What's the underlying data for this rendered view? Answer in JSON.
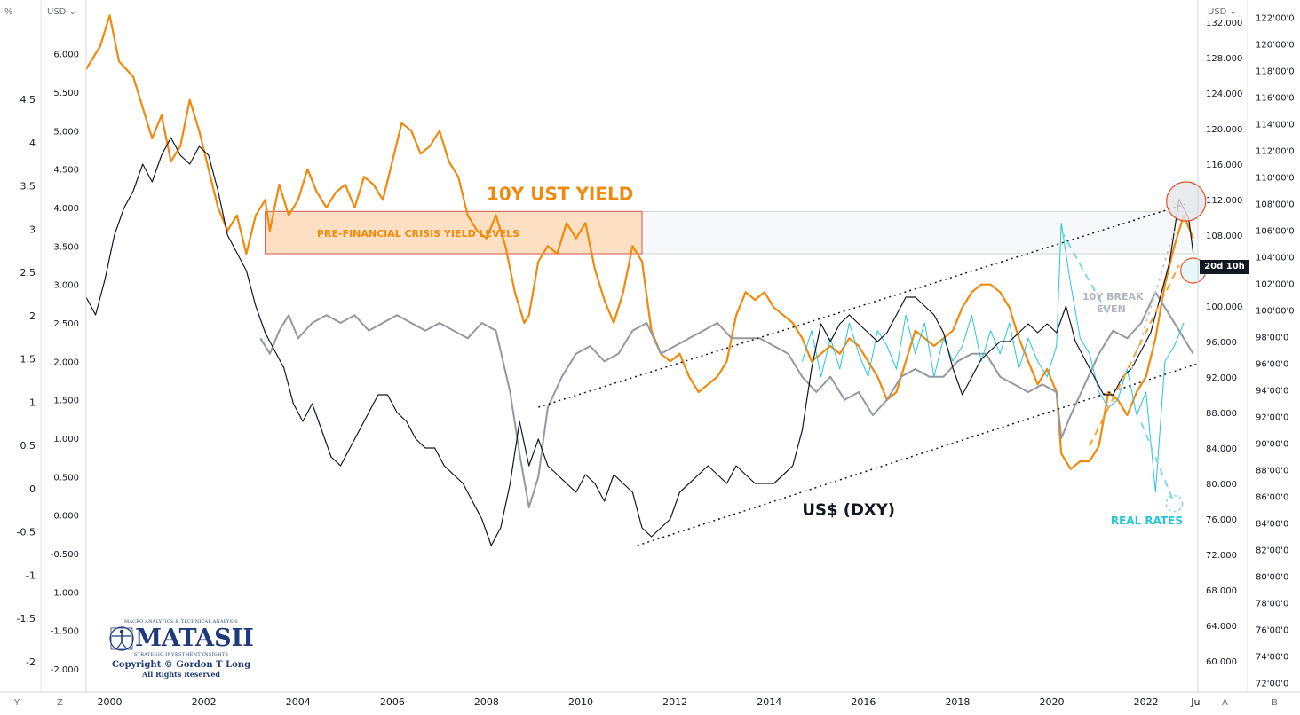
{
  "chart_data": {
    "type": "line",
    "x_range": [
      1999.5,
      2023.1
    ],
    "x_ticks": [
      "2000",
      "2002",
      "2004",
      "2006",
      "2008",
      "2010",
      "2012",
      "2014",
      "2016",
      "2018",
      "2020",
      "2022",
      "Ju"
    ],
    "x_tick_values": [
      2000,
      2002,
      2004,
      2006,
      2008,
      2010,
      2012,
      2014,
      2016,
      2018,
      2020,
      2022,
      2023.05
    ],
    "axes": {
      "left_outer": {
        "label": "%",
        "ticks": [
          "4.5",
          "4",
          "3.5",
          "3",
          "2.5",
          "2",
          "1.5",
          "1",
          "0.5",
          "0",
          "-0.5",
          "-1",
          "-1.5",
          "-2"
        ],
        "tick_values": [
          4.5,
          4,
          3.5,
          3,
          2.5,
          2,
          1.5,
          1,
          0.5,
          0,
          -0.5,
          -1,
          -1.5,
          -2
        ],
        "range": [
          -2.35,
          5.65
        ]
      },
      "left_inner": {
        "label": "USD",
        "ticks": [
          "6.000",
          "5.500",
          "5.000",
          "4.500",
          "4.000",
          "3.500",
          "3.000",
          "2.500",
          "2.000",
          "1.500",
          "1.000",
          "0.500",
          "0.000",
          "-0.500",
          "-1.000",
          "-1.500",
          "-2.000"
        ],
        "tick_values": [
          6,
          5.5,
          5,
          4.5,
          4,
          3.5,
          3,
          2.5,
          2,
          1.5,
          1,
          0.5,
          0,
          -0.5,
          -1,
          -1.5,
          -2
        ],
        "range": [
          -2.3,
          6.7
        ]
      },
      "right_inner": {
        "label": "USD",
        "ticks": [
          "132.000",
          "128.000",
          "124.000",
          "120.000",
          "116.000",
          "112.000",
          "108.000",
          "104.000",
          "100.000",
          "96.000",
          "92.000",
          "88.000",
          "84.000",
          "80.000",
          "76.000",
          "72.000",
          "68.000",
          "64.000",
          "60.000"
        ],
        "tick_values": [
          132,
          128,
          124,
          120,
          116,
          112,
          108,
          104,
          100,
          96,
          92,
          88,
          84,
          80,
          76,
          72,
          68,
          64,
          60
        ],
        "range": [
          56.5,
          134.5
        ]
      },
      "right_outer": {
        "ticks": [
          "122'00'0",
          "120'00'0",
          "118'00'0",
          "116'00'0",
          "114'00'0",
          "112'00'0",
          "110'00'0",
          "108'00'0",
          "106'00'0",
          "104'00'0",
          "102'00'0",
          "100'00'0",
          "98'00'0",
          "96'00'0",
          "94'00'0",
          "92'00'0",
          "90'00'0",
          "88'00'0",
          "86'00'0",
          "84'00'0",
          "82'00'0",
          "80'00'0",
          "78'00'0",
          "76'00'0",
          "74'00'0",
          "72'00'0"
        ],
        "tick_values": [
          122,
          120,
          118,
          116,
          114,
          112,
          110,
          108,
          106,
          104,
          102,
          100,
          98,
          96,
          94,
          92,
          90,
          88,
          86,
          84,
          82,
          80,
          78,
          76,
          74,
          72
        ],
        "range": [
          71.3,
          123.3
        ]
      }
    },
    "series": [
      {
        "color": "#f08a0c",
        "scale": "left_inner",
        "x": [
          1999.5,
          1999.8,
          2000.0,
          2000.2,
          2000.5,
          2000.7,
          2000.9,
          2001.1,
          2001.3,
          2001.5,
          2001.7,
          2001.9,
          2002.1,
          2002.3,
          2002.5,
          2002.7,
          2002.9,
          2003.1,
          2003.3,
          2003.4,
          2003.6,
          2003.8,
          2004.0,
          2004.2,
          2004.4,
          2004.6,
          2004.8,
          2005.0,
          2005.2,
          2005.4,
          2005.6,
          2005.8,
          2006.0,
          2006.2,
          2006.4,
          2006.6,
          2006.8,
          2007.0,
          2007.2,
          2007.4,
          2007.6,
          2007.8,
          2008.0,
          2008.2,
          2008.4,
          2008.6,
          2008.8,
          2008.9,
          2009.1,
          2009.3,
          2009.5,
          2009.7,
          2009.9,
          2010.1,
          2010.3,
          2010.5,
          2010.7,
          2010.9,
          2011.1,
          2011.3,
          2011.5,
          2011.7,
          2011.9,
          2012.1,
          2012.3,
          2012.5,
          2012.7,
          2012.9,
          2013.1,
          2013.3,
          2013.5,
          2013.7,
          2013.9,
          2014.1,
          2014.3,
          2014.5,
          2014.7,
          2014.9,
          2015.1,
          2015.3,
          2015.5,
          2015.7,
          2015.9,
          2016.1,
          2016.3,
          2016.5,
          2016.7,
          2016.9,
          2017.1,
          2017.3,
          2017.5,
          2017.7,
          2017.9,
          2018.1,
          2018.3,
          2018.5,
          2018.7,
          2018.9,
          2019.1,
          2019.3,
          2019.5,
          2019.7,
          2019.9,
          2020.1,
          2020.2,
          2020.4,
          2020.6,
          2020.8,
          2021.0,
          2021.2,
          2021.4,
          2021.6,
          2021.8,
          2022.0,
          2022.2,
          2022.4,
          2022.6,
          2022.8,
          2023.0
        ],
        "y": [
          5.8,
          6.1,
          6.5,
          5.9,
          5.7,
          5.3,
          4.9,
          5.2,
          4.6,
          4.8,
          5.4,
          5.0,
          4.5,
          4.0,
          3.7,
          3.9,
          3.4,
          3.9,
          4.1,
          3.7,
          4.3,
          3.9,
          4.1,
          4.5,
          4.2,
          4.0,
          4.2,
          4.3,
          4.0,
          4.4,
          4.3,
          4.1,
          4.6,
          5.1,
          5.0,
          4.7,
          4.8,
          5.0,
          4.6,
          4.4,
          3.9,
          3.7,
          3.6,
          3.9,
          3.5,
          2.9,
          2.5,
          2.6,
          3.3,
          3.5,
          3.4,
          3.8,
          3.6,
          3.8,
          3.2,
          2.8,
          2.5,
          2.9,
          3.5,
          3.3,
          2.4,
          2.1,
          2.0,
          2.1,
          1.8,
          1.6,
          1.7,
          1.8,
          2.0,
          2.6,
          2.9,
          2.8,
          2.9,
          2.7,
          2.6,
          2.5,
          2.3,
          2.0,
          2.1,
          2.2,
          2.1,
          2.3,
          2.2,
          2.0,
          1.8,
          1.5,
          1.6,
          2.0,
          2.4,
          2.3,
          2.2,
          2.3,
          2.4,
          2.7,
          2.9,
          3.0,
          3.0,
          2.9,
          2.7,
          2.3,
          2.0,
          1.7,
          1.9,
          1.6,
          0.8,
          0.6,
          0.7,
          0.7,
          0.9,
          1.6,
          1.5,
          1.3,
          1.6,
          1.8,
          2.3,
          3.0,
          3.5,
          3.9,
          3.6
        ]
      },
      {
        "color": "#9598a1",
        "scale": "left_inner",
        "x": [
          2003.2,
          2003.4,
          2003.6,
          2003.8,
          2004.0,
          2004.3,
          2004.6,
          2004.9,
          2005.2,
          2005.5,
          2005.8,
          2006.1,
          2006.4,
          2006.7,
          2007.0,
          2007.3,
          2007.6,
          2007.9,
          2008.2,
          2008.5,
          2008.7,
          2008.9,
          2009.1,
          2009.3,
          2009.6,
          2009.9,
          2010.2,
          2010.5,
          2010.8,
          2011.1,
          2011.4,
          2011.7,
          2012.0,
          2012.3,
          2012.6,
          2012.9,
          2013.2,
          2013.5,
          2013.8,
          2014.1,
          2014.4,
          2014.7,
          2015.0,
          2015.3,
          2015.6,
          2015.9,
          2016.2,
          2016.5,
          2016.8,
          2017.1,
          2017.4,
          2017.7,
          2018.0,
          2018.3,
          2018.6,
          2018.9,
          2019.2,
          2019.5,
          2019.8,
          2020.1,
          2020.2,
          2020.4,
          2020.7,
          2021.0,
          2021.3,
          2021.6,
          2021.9,
          2022.2,
          2022.5,
          2022.8,
          2023.0
        ],
        "y": [
          2.3,
          2.1,
          2.4,
          2.6,
          2.3,
          2.5,
          2.6,
          2.5,
          2.6,
          2.4,
          2.5,
          2.6,
          2.5,
          2.4,
          2.5,
          2.4,
          2.3,
          2.5,
          2.4,
          1.6,
          0.8,
          0.1,
          0.5,
          1.4,
          1.8,
          2.1,
          2.2,
          2.0,
          2.1,
          2.4,
          2.5,
          2.1,
          2.2,
          2.3,
          2.4,
          2.5,
          2.3,
          2.3,
          2.3,
          2.2,
          2.1,
          1.8,
          1.6,
          1.8,
          1.5,
          1.6,
          1.3,
          1.5,
          1.8,
          1.9,
          1.8,
          1.8,
          2.0,
          2.1,
          2.1,
          1.8,
          1.7,
          1.6,
          1.7,
          1.6,
          1.0,
          1.3,
          1.7,
          2.1,
          2.4,
          2.3,
          2.5,
          2.9,
          2.6,
          2.3,
          2.1
        ]
      },
      {
        "color": "#26c6da",
        "scale": "left_inner",
        "x": [
          2014.7,
          2014.9,
          2015.1,
          2015.3,
          2015.5,
          2015.7,
          2015.9,
          2016.1,
          2016.3,
          2016.5,
          2016.7,
          2016.9,
          2017.1,
          2017.3,
          2017.5,
          2017.7,
          2017.9,
          2018.1,
          2018.3,
          2018.5,
          2018.7,
          2018.9,
          2019.1,
          2019.3,
          2019.5,
          2019.7,
          2019.9,
          2020.1,
          2020.2,
          2020.4,
          2020.6,
          2020.8,
          2021.0,
          2021.2,
          2021.4,
          2021.6,
          2021.8,
          2022.0,
          2022.2,
          2022.4,
          2022.6,
          2022.8
        ],
        "y": [
          2.0,
          2.4,
          1.8,
          2.3,
          1.9,
          2.5,
          2.1,
          1.8,
          2.4,
          2.2,
          1.9,
          2.6,
          2.1,
          2.5,
          1.8,
          2.3,
          2.0,
          2.2,
          2.6,
          2.0,
          2.4,
          2.1,
          2.5,
          1.9,
          2.3,
          2.0,
          1.8,
          2.2,
          3.8,
          3.0,
          2.3,
          2.1,
          1.6,
          1.4,
          1.5,
          1.9,
          1.3,
          1.6,
          0.3,
          2.0,
          2.2,
          2.5
        ]
      },
      {
        "color": "#131722",
        "scale": "right_inner",
        "x": [
          1999.5,
          1999.7,
          1999.9,
          2000.1,
          2000.3,
          2000.5,
          2000.7,
          2000.9,
          2001.1,
          2001.3,
          2001.5,
          2001.7,
          2001.9,
          2002.1,
          2002.3,
          2002.5,
          2002.7,
          2002.9,
          2003.1,
          2003.3,
          2003.5,
          2003.7,
          2003.9,
          2004.1,
          2004.3,
          2004.5,
          2004.7,
          2004.9,
          2005.1,
          2005.3,
          2005.5,
          2005.7,
          2005.9,
          2006.1,
          2006.3,
          2006.5,
          2006.7,
          2006.9,
          2007.1,
          2007.3,
          2007.5,
          2007.7,
          2007.9,
          2008.1,
          2008.3,
          2008.5,
          2008.7,
          2008.9,
          2009.1,
          2009.3,
          2009.5,
          2009.7,
          2009.9,
          2010.1,
          2010.3,
          2010.5,
          2010.7,
          2010.9,
          2011.1,
          2011.3,
          2011.5,
          2011.7,
          2011.9,
          2012.1,
          2012.3,
          2012.5,
          2012.7,
          2012.9,
          2013.1,
          2013.3,
          2013.5,
          2013.7,
          2013.9,
          2014.1,
          2014.3,
          2014.5,
          2014.7,
          2014.9,
          2015.1,
          2015.3,
          2015.5,
          2015.7,
          2015.9,
          2016.1,
          2016.3,
          2016.5,
          2016.7,
          2016.9,
          2017.1,
          2017.3,
          2017.5,
          2017.7,
          2017.9,
          2018.1,
          2018.3,
          2018.5,
          2018.7,
          2018.9,
          2019.1,
          2019.3,
          2019.5,
          2019.7,
          2019.9,
          2020.1,
          2020.3,
          2020.5,
          2020.7,
          2020.9,
          2021.1,
          2021.3,
          2021.5,
          2021.7,
          2021.9,
          2022.1,
          2022.3,
          2022.5,
          2022.7,
          2022.9,
          2023.0
        ],
        "y": [
          101,
          99,
          103,
          108,
          111,
          113,
          116,
          114,
          117,
          119,
          117,
          116,
          118,
          117,
          113,
          108,
          106,
          104,
          100,
          97,
          95,
          93,
          89,
          87,
          89,
          86,
          83,
          82,
          84,
          86,
          88,
          90,
          90,
          88,
          87,
          85,
          84,
          84,
          82,
          81,
          80,
          78,
          76,
          73,
          75,
          80,
          87,
          82,
          85,
          82,
          81,
          80,
          79,
          81,
          80,
          78,
          81,
          80,
          79,
          75,
          74,
          75,
          76,
          79,
          80,
          81,
          82,
          81,
          80,
          82,
          81,
          80,
          80,
          80,
          81,
          82,
          86,
          93,
          98,
          96,
          98,
          99,
          98,
          97,
          96,
          97,
          99,
          101,
          101,
          100,
          99,
          97,
          93,
          90,
          92,
          94,
          95,
          96,
          96,
          97,
          98,
          97,
          98,
          97,
          100,
          96,
          94,
          92,
          90,
          90,
          92,
          93,
          95,
          97,
          101,
          105,
          112,
          110,
          106
        ]
      }
    ],
    "annotations": [
      {
        "text": "10Y UST YIELD",
        "color": "#f08a0c"
      },
      {
        "text": "PRE-FINANCIAL CRISIS YIELD LEVELS",
        "color": "#f08a0c"
      },
      {
        "text": "10Y BREAK",
        "color": "#b2b5be"
      },
      {
        "text": "EVEN",
        "color": "#b2b5be"
      },
      {
        "text": "US$ (DXY)",
        "color": "#131722"
      },
      {
        "text": "REAL RATES",
        "color": "#26c6da"
      }
    ],
    "grid": false,
    "legend": "none"
  },
  "axis_labels": {
    "left_outer_unit": "%",
    "left_inner_unit": "USD ⌄",
    "right_inner_unit": "USD ⌄"
  },
  "corner_labels": {
    "bottom_left_1": "Y",
    "bottom_left_2": "Z",
    "bottom_right_1": "A",
    "bottom_right_2": "B"
  },
  "countdown_badge": "20d 10h",
  "logo": {
    "tagline": "MACRO ANALYTICS & TECHNICAL ANALYSIS",
    "brand": "MATASII",
    "subtitle": "STRATEGIC INVESTMENT INSIGHTS",
    "copyright": "Copyright © Gordon T Long",
    "rights": "All Rights Reserved"
  },
  "colors": {
    "yield": "#f08a0c",
    "breakeven": "#9598a1",
    "real_rates": "#26c6da",
    "dxy": "#131722",
    "highlight_circle": "#e5542e"
  }
}
